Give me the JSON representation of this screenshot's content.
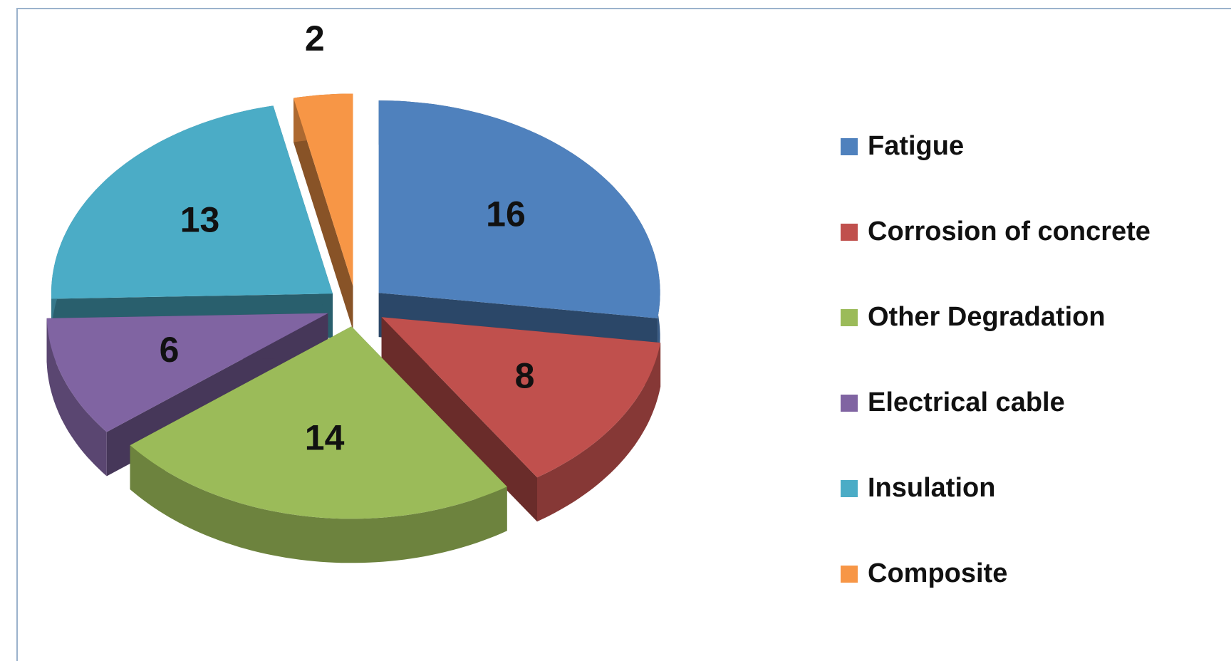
{
  "chart_data": {
    "type": "pie",
    "categories": [
      "Fatigue",
      "Corrosion of concrete",
      "Other Degradation",
      "Electrical cable",
      "Insulation",
      "Composite"
    ],
    "values": [
      16,
      8,
      14,
      6,
      13,
      2
    ],
    "colors": [
      "#4f81bd",
      "#c0504d",
      "#9bbb59",
      "#8064a2",
      "#4bacc6",
      "#f79646"
    ],
    "legend": "right"
  }
}
